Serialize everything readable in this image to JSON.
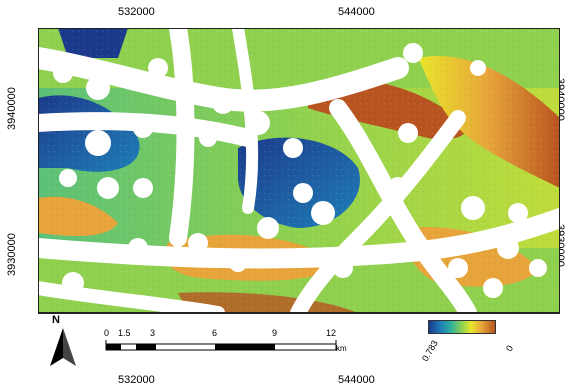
{
  "map": {
    "x_ticks_top": [
      "532000",
      "544000"
    ],
    "x_ticks_bottom": [
      "532000",
      "544000"
    ],
    "y_ticks_left": [
      "3940000",
      "3930000"
    ],
    "y_ticks_right": [
      "3940000",
      "3930000"
    ]
  },
  "north": {
    "label": "N"
  },
  "scalebar": {
    "labels": [
      "0",
      "1.5",
      "3",
      "6",
      "9",
      "12"
    ],
    "unit": "km"
  },
  "legend": {
    "min_label": "0.783",
    "max_label": "0",
    "colors": {
      "low": "#1c3a8c",
      "mid": "#8fd14f",
      "high": "#b8541f"
    }
  }
}
